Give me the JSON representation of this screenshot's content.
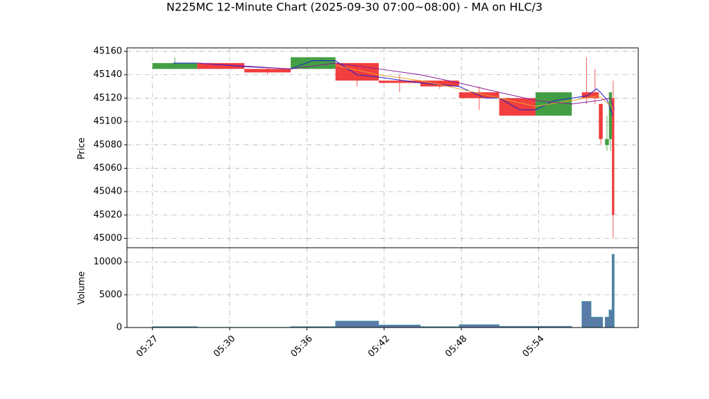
{
  "chart_data": {
    "type": "candlestick",
    "title": "N225MC 12-Minute Chart (2025-09-30 07:00~08:00) - MA on HLC/3",
    "grid": true,
    "xlim": [
      -0.33,
      6.29
    ],
    "xticks": [
      {
        "value": 0,
        "label": "05:27"
      },
      {
        "value": 1,
        "label": "05:30"
      },
      {
        "value": 2,
        "label": "05:36"
      },
      {
        "value": 3,
        "label": "05:42"
      },
      {
        "value": 4,
        "label": "05:48"
      },
      {
        "value": 5,
        "label": "05:54"
      }
    ],
    "ylabel": "Price",
    "ylim": [
      44992,
      45163
    ],
    "yticks": [
      45000,
      45020,
      45040,
      45060,
      45080,
      45100,
      45120,
      45140,
      45160
    ],
    "up_color": "#3a9a3a",
    "down_color": "#f03434",
    "candles": {
      "x_start": [
        0,
        0.58,
        1.19,
        1.79,
        2.37,
        2.93,
        3.47,
        3.97,
        4.49,
        4.96,
        5.56,
        5.68,
        5.78,
        5.86,
        5.91,
        5.95
      ],
      "x_end": [
        0.58,
        1.19,
        1.79,
        2.37,
        2.93,
        3.47,
        3.97,
        4.49,
        4.96,
        5.43,
        5.68,
        5.78,
        5.83,
        5.91,
        5.95,
        5.98
      ],
      "open": [
        45145,
        45150,
        45145,
        45145,
        45150,
        45135,
        45135,
        45125,
        45120,
        45105,
        45125,
        45125,
        45115,
        45080,
        45085,
        45120
      ],
      "high": [
        45155,
        45150,
        45146,
        45155,
        45150,
        45140,
        45135,
        45130,
        45120,
        45125,
        45155,
        45145,
        45115,
        45105,
        45125,
        45135
      ],
      "low": [
        45145,
        45145,
        45140,
        45145,
        45130,
        45125,
        45128,
        45110,
        45105,
        45105,
        45115,
        45115,
        45080,
        45075,
        45075,
        45000
      ],
      "close": [
        45150,
        45145,
        45142,
        45155,
        45135,
        45133,
        45130,
        45120,
        45105,
        45125,
        45120,
        45120,
        45085,
        45085,
        45125,
        45020
      ]
    },
    "moving_averages": [
      {
        "color": "#1f1fd0",
        "x": [
          0.27,
          0.58,
          1.19,
          1.79,
          2.07,
          2.37,
          2.65,
          2.93,
          3.47,
          3.97,
          4.31,
          4.49,
          4.76,
          4.96,
          5.21,
          5.43,
          5.63,
          5.75,
          5.8,
          5.89,
          5.96
        ],
        "values": [
          45150,
          45150,
          45147,
          45145,
          45152,
          45152,
          45140,
          45138,
          45133,
          45130,
          45120,
          45120,
          45110,
          45110,
          45118,
          45120,
          45122,
          45128,
          45125,
          45118,
          45105
        ]
      },
      {
        "color": "#f0a030",
        "x": [
          2.37,
          2.93,
          3.47,
          3.97,
          4.49,
          4.96,
          5.43,
          5.78,
          5.96
        ],
        "values": [
          45148,
          45140,
          45135,
          45128,
          45120,
          45113,
          45118,
          45122,
          45112
        ]
      },
      {
        "color": "#8a1a9a",
        "x": [
          0.58,
          1.79,
          2.37,
          2.93,
          3.47,
          3.97,
          4.49,
          4.96,
          5.43,
          5.78,
          5.93,
          5.98
        ],
        "values": [
          45150,
          45145,
          45150,
          45145,
          45140,
          45133,
          45125,
          45118,
          45115,
          45118,
          45120,
          45110
        ]
      }
    ],
    "volume": {
      "ylabel": "Volume",
      "ylim": [
        0,
        12200
      ],
      "yticks": [
        0,
        5000,
        10000
      ],
      "color": "#5a7aa8",
      "values": [
        150,
        50,
        50,
        150,
        1000,
        400,
        150,
        450,
        200,
        200,
        4000,
        1600,
        1600,
        1600,
        2700,
        11200
      ]
    }
  }
}
